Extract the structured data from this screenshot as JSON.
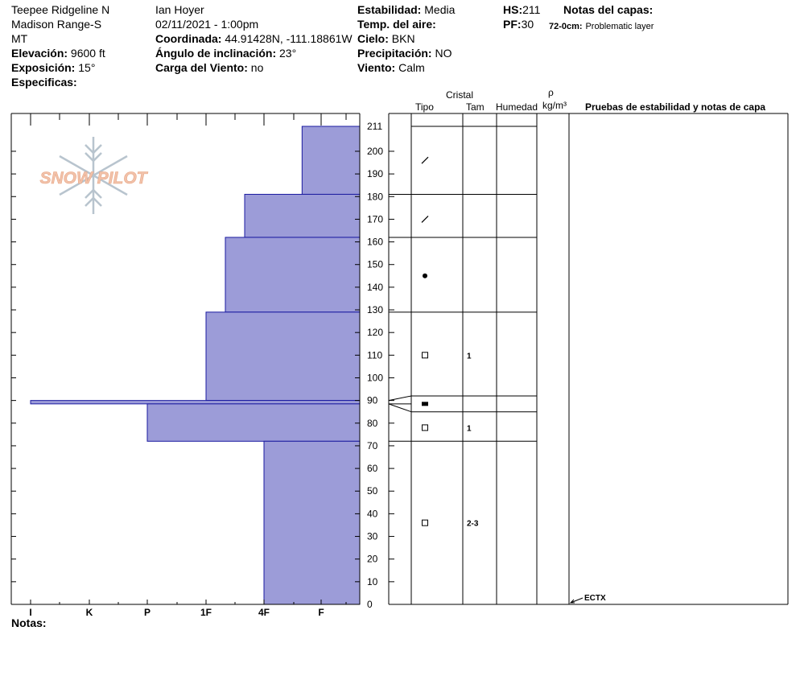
{
  "header": {
    "location": "Teepee Ridgeline N",
    "range": "Madison Range-S",
    "state": "MT",
    "elevation_label": "Elevación:",
    "elevation": "9600 ft",
    "aspect_label": "Exposición:",
    "aspect": "15°",
    "specifics_label": "Especificas:",
    "observer": "Ian Hoyer",
    "datetime": "02/11/2021 - 1:00pm",
    "coord_label": "Coordinada:",
    "coord": "44.91428N, -111.18861W",
    "slope_label": "Ángulo de inclinación:",
    "slope": "23°",
    "wind_load_label": "Carga del Viento:",
    "wind_load": "no",
    "stability_label": "Estabilidad:",
    "stability": "Media",
    "air_temp_label": "Temp. del aire:",
    "air_temp": "",
    "sky_label": "Cielo:",
    "sky": "BKN",
    "precip_label": "Precipitación:",
    "precip": "NO",
    "wind_label": "Viento:",
    "wind": "Calm",
    "hs_label": "HS:",
    "hs": "211",
    "pf_label": "PF:",
    "pf": "30",
    "layer_notes_label": "Notas del capas:",
    "layer_note_depth": "72-0cm:",
    "layer_note_text": "Problematic layer"
  },
  "columns": {
    "crystal": "Cristal",
    "type": "Tipo",
    "size": "Tam",
    "moisture": "Humedad",
    "rho": "ρ",
    "density_unit": "kg/m³",
    "tests": "Pruebas de estabilidad y notas de capa"
  },
  "logo_text": "SNOW PILOT",
  "notes_label": "Notas:",
  "colors": {
    "layer_fill": "#9c9cd8",
    "layer_stroke": "#1a1aa0"
  },
  "chart_data": {
    "type": "bar",
    "orientation": "horizontal",
    "y_axis": {
      "range": [
        0,
        211
      ],
      "ticks": [
        0,
        10,
        20,
        30,
        40,
        50,
        60,
        70,
        80,
        90,
        100,
        110,
        120,
        130,
        140,
        150,
        160,
        170,
        180,
        190,
        200,
        211
      ]
    },
    "x_axis": {
      "categories": [
        "I",
        "K",
        "P",
        "1F",
        "4F",
        "F"
      ]
    },
    "hardness_layers": [
      {
        "top": 211,
        "bottom": 181,
        "hardness": "F+"
      },
      {
        "top": 181,
        "bottom": 162,
        "hardness": "4F+"
      },
      {
        "top": 162,
        "bottom": 129,
        "hardness": "1F-"
      },
      {
        "top": 129,
        "bottom": 90,
        "hardness": "1F"
      },
      {
        "top": 90,
        "bottom": 88.5,
        "hardness": "I+"
      },
      {
        "top": 88.5,
        "bottom": 72,
        "hardness": "P"
      },
      {
        "top": 72,
        "bottom": 0,
        "hardness": "4F"
      }
    ],
    "strat_boundaries": [
      211,
      181,
      162,
      129,
      92,
      85,
      72,
      0
    ],
    "crystal_layers": [
      {
        "depth": 196,
        "type": "decomposing",
        "size": ""
      },
      {
        "depth": 170,
        "type": "decomposing",
        "size": ""
      },
      {
        "depth": 145,
        "type": "rounded",
        "size": ""
      },
      {
        "depth": 110,
        "type": "faceted",
        "size": "1"
      },
      {
        "depth": 88.5,
        "type": "melt-freeze crust",
        "size": ""
      },
      {
        "depth": 78,
        "type": "faceted",
        "size": "1"
      },
      {
        "depth": 36,
        "type": "faceted",
        "size": "2-3"
      }
    ],
    "tests": [
      {
        "depth": 0,
        "label": "ECTX"
      }
    ]
  }
}
